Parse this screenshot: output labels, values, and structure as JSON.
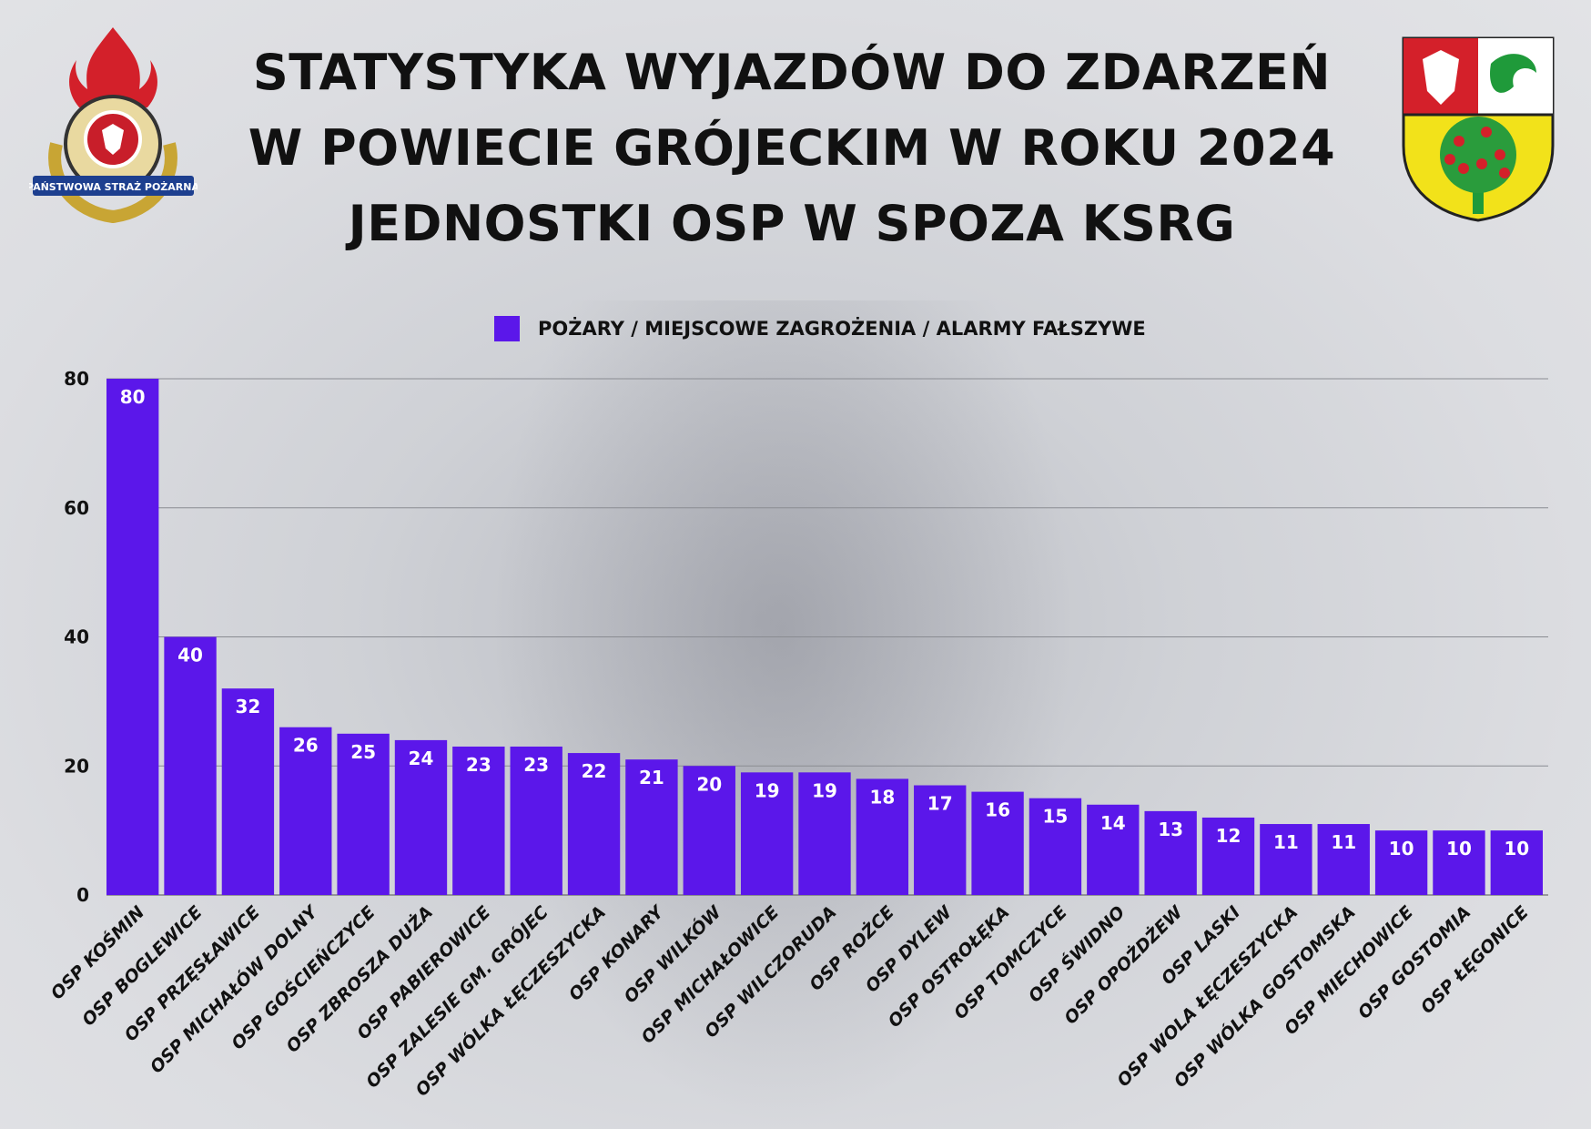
{
  "title_lines": [
    "STATYSTYKA WYJAZDÓW DO ZDARZEŃ",
    "W POWIECIE GRÓJECKIM W ROKU 2024",
    "JEDNOSTKI OSP W SPOZA KSRG"
  ],
  "logos": {
    "left": "PAŃSTWOWA STRAŻ POŻARNA",
    "right": "coat-of-arms"
  },
  "chart_data": {
    "type": "bar",
    "title": "STATYSTYKA WYJAZDÓW DO ZDARZEŃ W POWIECIE GRÓJECKIM W ROKU 2024 JEDNOSTKI OSP W SPOZA KSRG",
    "legend": [
      "POŻARY / MIEJSCOWE ZAGROŻENIA / ALARMY FAŁSZYWE"
    ],
    "legend_position": "top-center",
    "color": "#5b17ea",
    "categories": [
      "OSP KOŚMIN",
      "OSP BOGLEWICE",
      "OSP PRZĘSŁAWICE",
      "OSP MICHAŁÓW DOLNY",
      "OSP GOŚCIEŃCZYCE",
      "OSP ZBROSZA DUŻA",
      "OSP PABIEROWICE",
      "OSP ZALESIE GM. GRÓJEC",
      "OSP WÓLKA ŁĘCZESZYCKA",
      "OSP KONARY",
      "OSP WILKÓW",
      "OSP MICHAŁOWICE",
      "OSP WILCZORUDA",
      "OSP ROŻCE",
      "OSP DYLEW",
      "OSP OSTROŁĘKA",
      "OSP TOMCZYCE",
      "OSP ŚWIDNO",
      "OSP OPOŻDŻEW",
      "OSP LASKI",
      "OSP WOLA ŁĘCZESZYCKA",
      "OSP WÓLKA GOSTOMSKA",
      "OSP MIECHOWICE",
      "OSP GOSTOMIA",
      "OSP ŁĘGONICE"
    ],
    "values": [
      80,
      40,
      32,
      26,
      25,
      24,
      23,
      23,
      22,
      21,
      20,
      19,
      19,
      18,
      17,
      16,
      15,
      14,
      13,
      12,
      11,
      11,
      10,
      10,
      10
    ],
    "yticks": [
      "0",
      "20",
      "40",
      "60",
      "80"
    ],
    "ylim": [
      0,
      80
    ],
    "grid": true,
    "xlabel": "",
    "ylabel": ""
  }
}
